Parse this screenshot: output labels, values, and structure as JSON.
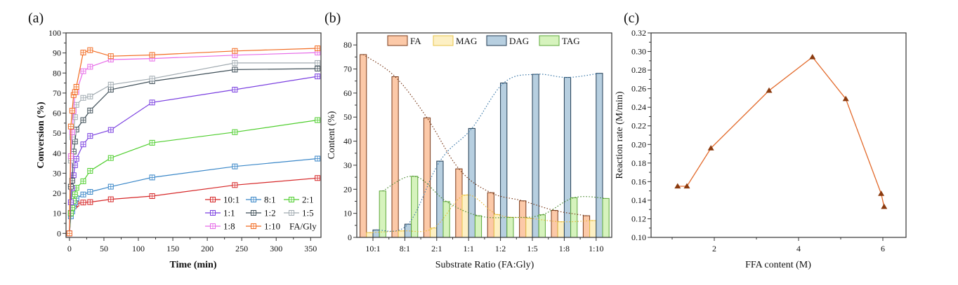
{
  "chart_data": [
    {
      "panel_label": "(a)",
      "type": "line",
      "xlabel": "Time (min)",
      "ylabel": "Conversion (%)",
      "xlim": [
        -5,
        365
      ],
      "ylim": [
        -2,
        100
      ],
      "xticks": [
        0,
        50,
        100,
        150,
        200,
        250,
        300,
        350
      ],
      "yticks": [
        0,
        10,
        20,
        30,
        40,
        50,
        60,
        70,
        80,
        90,
        100
      ],
      "legend_title": "FA/Gly",
      "legend_position": "bottom-right",
      "marker": "square-cross",
      "x": [
        0,
        2,
        4,
        6,
        8,
        10,
        20,
        30,
        60,
        120,
        240,
        360
      ],
      "series": [
        {
          "name": "10:1",
          "color": "#d62728",
          "values": [
            0,
            10.2,
            12.5,
            13.5,
            14.2,
            14.8,
            15.4,
            15.6,
            17.0,
            18.6,
            24.1,
            27.6
          ]
        },
        {
          "name": "8:1",
          "color": "#3a87c8",
          "values": [
            0,
            8.5,
            11.0,
            13.5,
            15.5,
            17.5,
            19.4,
            20.7,
            23.3,
            27.9,
            33.4,
            37.3
          ]
        },
        {
          "name": "2:1",
          "color": "#4fce2e",
          "values": [
            0,
            10.0,
            12.8,
            16.2,
            19.5,
            22.7,
            26.0,
            31.2,
            37.6,
            45.2,
            50.5,
            56.5
          ]
        },
        {
          "name": "1:1",
          "color": "#7a3fe0",
          "values": [
            0,
            15.5,
            22.5,
            29.0,
            34.0,
            37.2,
            44.4,
            48.6,
            51.6,
            65.3,
            71.7,
            78.3
          ]
        },
        {
          "name": "1:2",
          "color": "#3e4e57",
          "values": [
            0,
            23.3,
            26.3,
            40.8,
            45.8,
            51.8,
            56.5,
            61.3,
            71.7,
            75.9,
            81.7,
            82.2
          ]
        },
        {
          "name": "1:5",
          "color": "#a0aab0",
          "values": [
            0,
            36.3,
            48.0,
            50.5,
            58.0,
            64.1,
            67.6,
            68.3,
            74.2,
            77.2,
            85.0,
            85.0
          ]
        },
        {
          "name": "1:8",
          "color": "#e66be8",
          "values": [
            0,
            38.5,
            50.5,
            61.0,
            70.5,
            70.5,
            80.9,
            83.1,
            86.7,
            87.2,
            88.9,
            90.2
          ]
        },
        {
          "name": "1:10",
          "color": "#f26b21",
          "values": [
            0,
            53.3,
            61.2,
            69.0,
            70.5,
            73.1,
            90.2,
            91.4,
            88.4,
            89.0,
            91.0,
            92.3
          ]
        }
      ]
    },
    {
      "panel_label": "(b)",
      "type": "bar",
      "xlabel": "Substrate Ratio (FA:Gly)",
      "ylabel": "Content (%)",
      "ylim": [
        0,
        85
      ],
      "yticks": [
        0,
        10,
        20,
        30,
        40,
        50,
        60,
        70,
        80
      ],
      "legend_position": "top",
      "trendlines": "dotted",
      "categories": [
        "10:1",
        "8:1",
        "2:1",
        "1:1",
        "1:2",
        "1:5",
        "1:8",
        "1:10"
      ],
      "series": [
        {
          "name": "FA",
          "fill": "#fcc9a8",
          "stroke": "#7a3a1a",
          "trend": "#7a3a1a",
          "values": [
            76.0,
            66.8,
            49.7,
            28.5,
            18.6,
            15.2,
            11.2,
            9.0
          ]
        },
        {
          "name": "MAG",
          "fill": "#fdf0c4",
          "stroke": "#e8c44a",
          "trend": "#e8b830",
          "values": [
            2.0,
            2.7,
            3.9,
            17.6,
            9.5,
            8.0,
            6.5,
            7.0
          ]
        },
        {
          "name": "DAG",
          "fill": "#b7cfe0",
          "stroke": "#1f3a52",
          "trend": "#3a78a8",
          "values": [
            3.1,
            5.5,
            31.7,
            45.3,
            64.2,
            67.8,
            66.5,
            68.2
          ]
        },
        {
          "name": "TAG",
          "fill": "#d6f3bd",
          "stroke": "#5ea83a",
          "trend": "#4a8a30",
          "values": [
            19.3,
            25.4,
            14.9,
            9.0,
            8.3,
            9.4,
            16.5,
            16.2
          ]
        }
      ]
    },
    {
      "panel_label": "(c)",
      "type": "line",
      "xlabel": "FFA content (M)",
      "ylabel": "Reaction rate (M/min)",
      "xlim": [
        0.5,
        6.55
      ],
      "ylim": [
        0.1,
        0.32
      ],
      "xticks": [
        2,
        4,
        6
      ],
      "yticks": [
        0.1,
        0.12,
        0.14,
        0.16,
        0.18,
        0.2,
        0.22,
        0.24,
        0.26,
        0.28,
        0.3,
        0.32
      ],
      "marker": "triangle",
      "series": [
        {
          "name": "Reaction rate",
          "line_color": "#e2692a",
          "marker_color": "#8b3a0e",
          "x": [
            1.13,
            1.35,
            1.92,
            3.3,
            4.33,
            5.12,
            5.96,
            6.03
          ],
          "y": [
            0.155,
            0.155,
            0.196,
            0.258,
            0.294,
            0.249,
            0.147,
            0.133
          ]
        }
      ]
    }
  ]
}
